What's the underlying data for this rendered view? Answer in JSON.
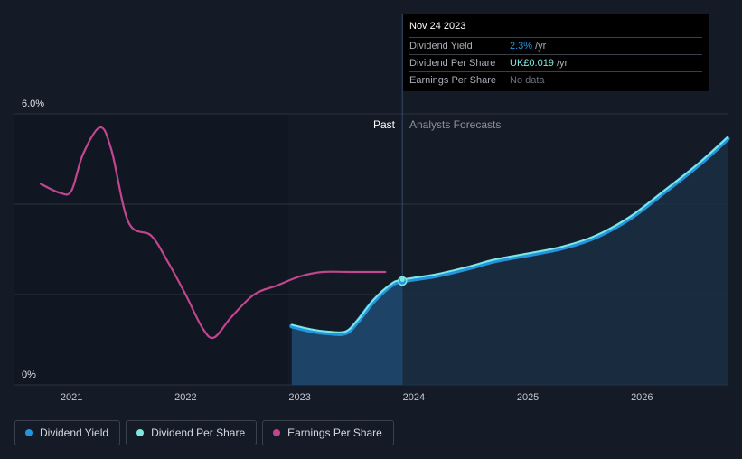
{
  "chart_data": {
    "type": "line",
    "y_axis": {
      "ticks": [
        "0%",
        "6.0%"
      ],
      "range": [
        0,
        6.0
      ],
      "unit": "%"
    },
    "x_axis": {
      "tick_labels": [
        "2021",
        "2022",
        "2023",
        "2024",
        "2025",
        "2026"
      ],
      "range": [
        2020.5,
        2026.75
      ]
    },
    "regions": {
      "past_label": "Past",
      "forecast_label": "Analysts Forecasts",
      "divider_x": 2023.9
    },
    "series": [
      {
        "name": "Dividend Yield",
        "color": "#2394df",
        "x": [
          2022.93,
          2023.1,
          2023.25,
          2023.4,
          2023.5,
          2023.65,
          2023.8,
          2023.9,
          2024.2,
          2024.5,
          2024.7,
          2025.0,
          2025.3,
          2025.6,
          2025.9,
          2026.2,
          2026.5,
          2026.75
        ],
        "y": [
          1.3,
          1.2,
          1.15,
          1.15,
          1.38,
          1.86,
          2.2,
          2.3,
          2.42,
          2.6,
          2.74,
          2.88,
          3.03,
          3.28,
          3.7,
          4.28,
          4.88,
          5.45
        ]
      },
      {
        "name": "Dividend Per Share",
        "color": "#7de8e0",
        "x": [
          2022.93,
          2023.1,
          2023.25,
          2023.4,
          2023.5,
          2023.65,
          2023.8,
          2023.9,
          2024.2,
          2024.5,
          2024.7,
          2025.0,
          2025.3,
          2025.6,
          2025.9,
          2026.2,
          2026.5,
          2026.75
        ],
        "y": [
          1.3,
          1.2,
          1.15,
          1.15,
          1.38,
          1.86,
          2.2,
          2.3,
          2.42,
          2.6,
          2.74,
          2.88,
          3.03,
          3.28,
          3.7,
          4.28,
          4.88,
          5.45
        ]
      },
      {
        "name": "Earnings Per Share",
        "color": "#c2468f",
        "x": [
          2020.73,
          2020.9,
          2021.0,
          2021.1,
          2021.25,
          2021.35,
          2021.5,
          2021.7,
          2021.85,
          2022.0,
          2022.15,
          2022.25,
          2022.4,
          2022.6,
          2022.8,
          2023.0,
          2023.2,
          2023.45,
          2023.75
        ],
        "y": [
          4.45,
          4.25,
          4.3,
          5.1,
          5.7,
          5.2,
          3.6,
          3.3,
          2.7,
          2.0,
          1.25,
          1.05,
          1.5,
          2.0,
          2.2,
          2.4,
          2.5,
          2.5,
          2.5
        ]
      }
    ],
    "tooltip": {
      "date": "Nov 24 2023",
      "rows": [
        {
          "name": "Dividend Yield",
          "value": "2.3%",
          "unit": "/yr"
        },
        {
          "name": "Dividend Per Share",
          "value": "UK£0.019",
          "unit": "/yr"
        },
        {
          "name": "Earnings Per Share",
          "value": "No data",
          "unit": ""
        }
      ]
    },
    "legend": [
      "Dividend Yield",
      "Dividend Per Share",
      "Earnings Per Share"
    ],
    "grid": true
  }
}
